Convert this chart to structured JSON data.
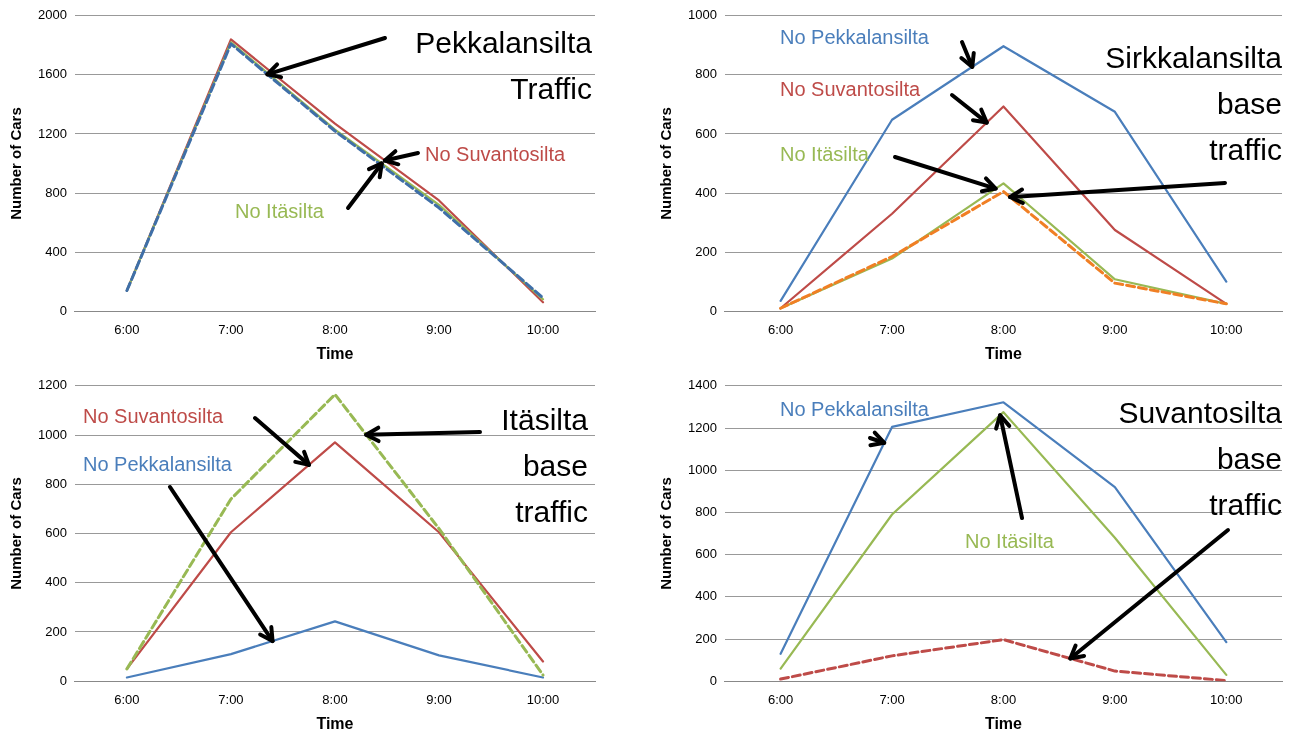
{
  "chart_data": [
    {
      "type": "line",
      "categories": [
        "6:00",
        "7:00",
        "8:00",
        "9:00",
        "10:00"
      ],
      "xlabel": "Time",
      "ylabel": "Number of Cars",
      "ylim": [
        0,
        2000
      ],
      "yticks": [
        0,
        400,
        800,
        1200,
        1600,
        2000
      ],
      "grid": "y",
      "series": [
        {
          "name": "No Suvantosilta",
          "color": "#be4b48",
          "values": [
            140,
            1840,
            1270,
            750,
            60
          ]
        },
        {
          "name": "No Itäsilta",
          "color": "#98b954",
          "values": [
            140,
            1820,
            1230,
            720,
            80
          ]
        },
        {
          "name": "Pekkalansilta Traffic",
          "color": "#3f6fa8",
          "values": [
            140,
            1810,
            1220,
            700,
            90
          ],
          "line_style": "dashed"
        }
      ]
    },
    {
      "type": "line",
      "categories": [
        "6:00",
        "7:00",
        "8:00",
        "9:00",
        "10:00"
      ],
      "xlabel": "Time",
      "ylabel": "Number of Cars",
      "ylim": [
        0,
        1000
      ],
      "yticks": [
        0,
        200,
        400,
        600,
        800,
        1000
      ],
      "grid": "y",
      "series": [
        {
          "name": "No Pekkalansilta",
          "color": "#4a7ebb",
          "values": [
            35,
            648,
            897,
            675,
            100
          ]
        },
        {
          "name": "No Suvantosilta",
          "color": "#be4b48",
          "values": [
            10,
            330,
            693,
            275,
            25
          ]
        },
        {
          "name": "No Itäsilta",
          "color": "#98b954",
          "values": [
            10,
            178,
            433,
            108,
            25
          ]
        },
        {
          "name": "Sirkkalansilta base traffic",
          "color": "#f07f24",
          "values": [
            10,
            185,
            405,
            95,
            25
          ],
          "line_style": "dashed"
        }
      ]
    },
    {
      "type": "line",
      "categories": [
        "6:00",
        "7:00",
        "8:00",
        "9:00",
        "10:00"
      ],
      "xlabel": "Time",
      "ylabel": "Number of Cars",
      "ylim": [
        0,
        1200
      ],
      "yticks": [
        0,
        200,
        400,
        600,
        800,
        1000,
        1200
      ],
      "grid": "y",
      "series": [
        {
          "name": "No Suvantosilta",
          "color": "#be4b48",
          "values": [
            50,
            605,
            970,
            605,
            80
          ]
        },
        {
          "name": "No Pekkalansilta",
          "color": "#4a7ebb",
          "values": [
            15,
            110,
            243,
            105,
            15
          ]
        },
        {
          "name": "Itäsilta base traffic",
          "color": "#98b954",
          "values": [
            50,
            740,
            1165,
            620,
            25
          ],
          "line_style": "dashed"
        }
      ]
    },
    {
      "type": "line",
      "categories": [
        "6:00",
        "7:00",
        "8:00",
        "9:00",
        "10:00"
      ],
      "xlabel": "Time",
      "ylabel": "Number of Cars",
      "ylim": [
        0,
        1400
      ],
      "yticks": [
        0,
        200,
        400,
        600,
        800,
        1000,
        1200,
        1400
      ],
      "grid": "y",
      "series": [
        {
          "name": "No Pekkalansilta",
          "color": "#4a7ebb",
          "values": [
            130,
            1205,
            1322,
            920,
            185
          ]
        },
        {
          "name": "No Itäsilta",
          "color": "#98b954",
          "values": [
            60,
            790,
            1275,
            680,
            30
          ]
        },
        {
          "name": "Suvantosilta base traffic",
          "color": "#be4b48",
          "values": [
            10,
            120,
            197,
            48,
            3
          ],
          "line_style": "dashed"
        }
      ]
    }
  ]
}
